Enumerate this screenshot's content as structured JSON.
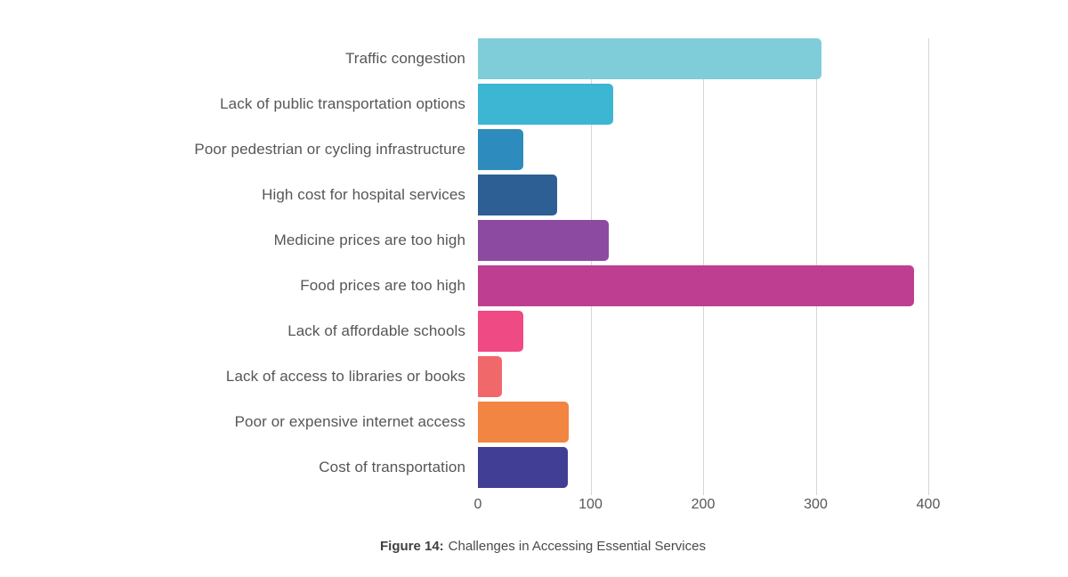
{
  "figure": {
    "caption_prefix": "Figure 14:",
    "caption_text": "Challenges in Accessing Essential Services"
  },
  "chart_data": {
    "type": "bar",
    "orientation": "horizontal",
    "title": "",
    "xlabel": "",
    "ylabel": "",
    "categories": [
      "Traffic congestion",
      "Lack of public transportation options",
      "Poor pedestrian or cycling infrastructure",
      "High cost for hospital services",
      "Medicine prices are too high",
      "Food prices are too high",
      "Lack of affordable schools",
      "Lack of access to libraries or books",
      "Poor or expensive internet access",
      "Cost of transportation"
    ],
    "values": [
      305,
      120,
      40,
      70,
      116,
      387,
      40,
      21,
      81,
      80
    ],
    "bar_colors": [
      "#7fcdd9",
      "#3cb6d3",
      "#2e8bbd",
      "#2d5f95",
      "#8c4aa0",
      "#be3f92",
      "#f04a84",
      "#f1686b",
      "#f28542",
      "#413e96"
    ],
    "x_ticks": [
      0,
      100,
      200,
      300,
      400
    ],
    "xlim": [
      0,
      400
    ],
    "grid": true,
    "legend_position": "none",
    "styles": {
      "grid_color": "#d6d6d6",
      "label_color": "#55565a",
      "tick_color": "#55565a",
      "caption_color": "#4a4a4a",
      "background": "#ffffff"
    }
  }
}
